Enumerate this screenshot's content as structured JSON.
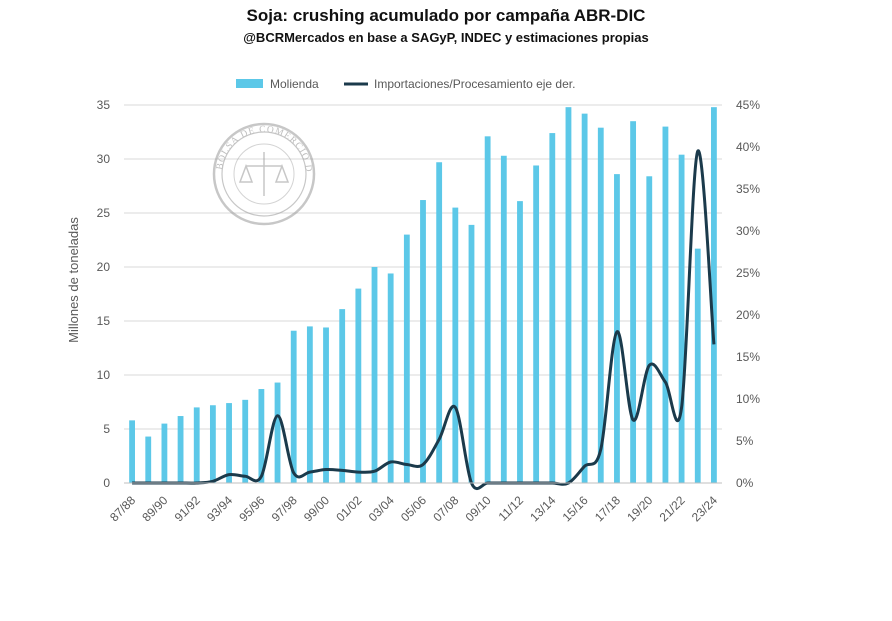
{
  "title": "Soja: crushing acumulado por campaña ABR-DIC",
  "subtitle": "@BCRMercados en base a SAGyP, INDEC y estimaciones propias",
  "watermark": {
    "text": "BOLSA DE COMERCIO DE ROSARIO"
  },
  "colors": {
    "bar": "#5CC8E8",
    "line": "#1B3A4B",
    "grid": "#D9D9D9",
    "axis_text": "#595959"
  },
  "chart_data": {
    "type": "bar",
    "categories": [
      "87/88",
      "88/89",
      "89/90",
      "90/91",
      "91/92",
      "92/93",
      "93/94",
      "94/95",
      "95/96",
      "96/97",
      "97/98",
      "98/99",
      "99/00",
      "00/01",
      "01/02",
      "02/03",
      "03/04",
      "04/05",
      "05/06",
      "06/07",
      "07/08",
      "08/09",
      "09/10",
      "10/11",
      "11/12",
      "12/13",
      "13/14",
      "14/15",
      "15/16",
      "16/17",
      "17/18",
      "18/19",
      "19/20",
      "20/21",
      "21/22",
      "22/23",
      "23/24"
    ],
    "x_tick_labels": [
      "87/88",
      "89/90",
      "91/92",
      "93/94",
      "95/96",
      "97/98",
      "99/00",
      "01/02",
      "03/04",
      "05/06",
      "07/08",
      "09/10",
      "11/12",
      "13/14",
      "15/16",
      "17/18",
      "19/20",
      "21/22",
      "23/24"
    ],
    "series": [
      {
        "name": "Molienda",
        "type": "bar",
        "axis": "left",
        "values": [
          5.8,
          4.3,
          5.5,
          6.2,
          7.0,
          7.2,
          7.4,
          7.7,
          8.7,
          9.3,
          14.1,
          14.5,
          14.4,
          16.1,
          18.0,
          20.0,
          19.4,
          23.0,
          26.2,
          29.7,
          25.5,
          23.9,
          32.1,
          30.3,
          26.1,
          29.4,
          32.4,
          34.8,
          34.2,
          32.9,
          28.6,
          33.5,
          28.4,
          33.0,
          30.4,
          21.7,
          34.8
        ]
      },
      {
        "name": "Importaciones/Procesamiento eje der.",
        "type": "line",
        "axis": "right",
        "values": [
          0,
          0,
          0,
          0,
          0,
          0.2,
          1.0,
          0.8,
          0.8,
          8.0,
          1.2,
          1.3,
          1.6,
          1.5,
          1.3,
          1.4,
          2.5,
          2.2,
          2.2,
          5.2,
          9.0,
          0,
          0,
          0,
          0,
          0,
          0,
          0,
          2.0,
          4.0,
          18.0,
          7.5,
          14.0,
          12.0,
          9.0,
          39.5,
          16.5
        ]
      }
    ],
    "ylabel": "Millones de toneladas",
    "ylim": [
      0,
      35
    ],
    "y_ticks": [
      "0",
      "5",
      "10",
      "15",
      "20",
      "25",
      "30",
      "35"
    ],
    "y2lim": [
      0,
      45
    ],
    "y2_ticks": [
      "0%",
      "5%",
      "10%",
      "15%",
      "20%",
      "25%",
      "30%",
      "35%",
      "40%",
      "45%"
    ],
    "legend_position": "top",
    "grid": true
  }
}
